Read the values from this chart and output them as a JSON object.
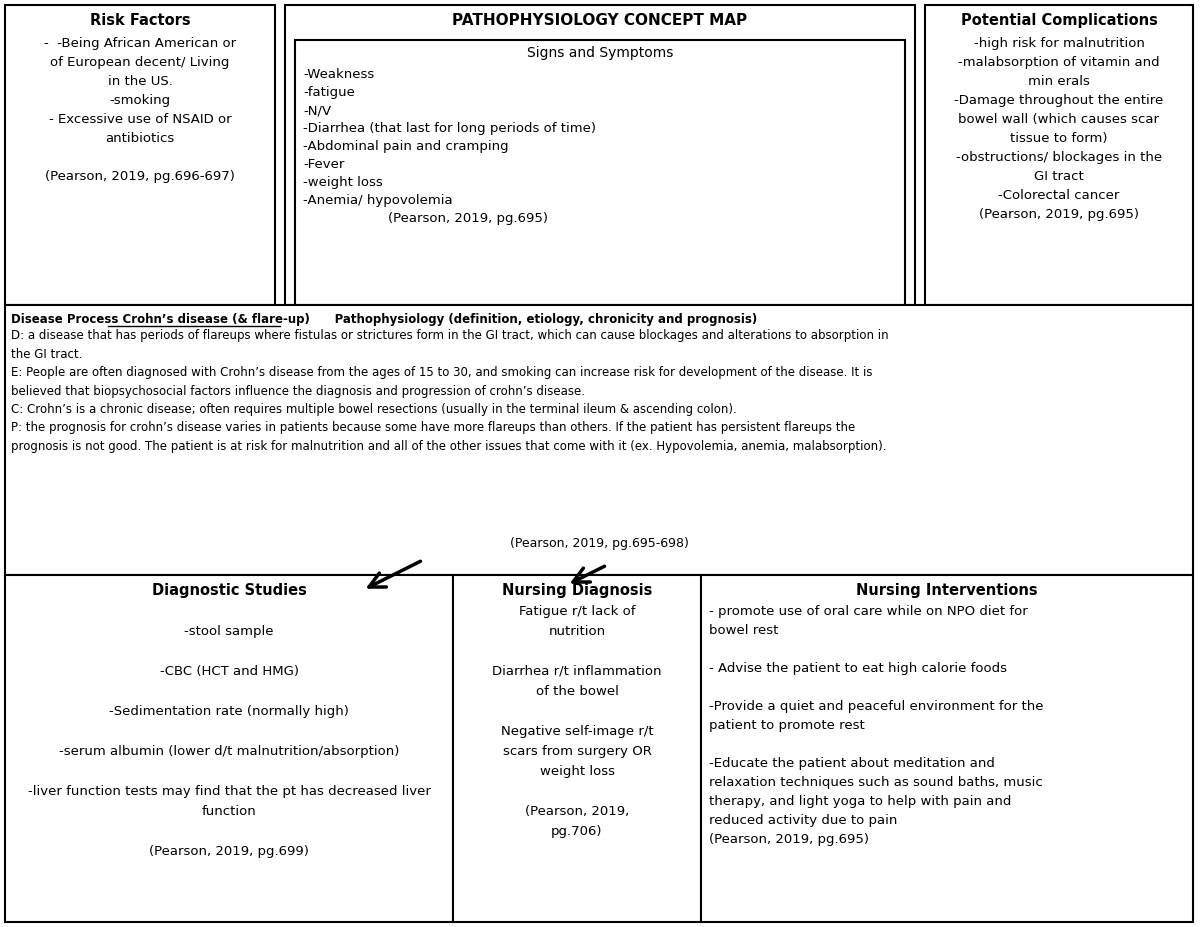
{
  "title": "PATHOPHYSIOLOGY CONCEPT MAP",
  "bg_color": "#ffffff",
  "risk_factors_title": "Risk Factors",
  "risk_factors_body": "-  -Being African American or\nof European decent/ Living\nin the US.\n-smoking\n- Excessive use of NSAID or\nantibiotics\n\n(Pearson, 2019, pg.696-697)",
  "signs_symptoms_title": "Signs and Symptoms",
  "signs_symptoms_body": "-Weakness\n-fatigue\n-N/V\n-Diarrhea (that last for long periods of time)\n-Abdominal pain and cramping\n-Fever\n-weight loss\n-Anemia/ hypovolemia\n                    (Pearson, 2019, pg.695)",
  "complications_title": "Potential Complications",
  "complications_body": "-high risk for malnutrition\n-malabsorption of vitamin and\nmin erals\n-Damage throughout the entire\nbowel wall (which causes scar\ntissue to form)\n-obstructions/ blockages in the\nGI tract\n-Colorectal cancer\n(Pearson, 2019, pg.695)",
  "disease_line1a": "Disease Process ",
  "disease_line1b": "Crohn’s disease (& flare-up)",
  "disease_line1c": "      Pathophysiology (definition, etiology, chronicity and prognosis)",
  "disease_body": "D: a disease that has periods of flareups where fistulas or strictures form in the GI tract, which can cause blockages and alterations to absorption in\nthe GI tract.\nE: People are often diagnosed with Crohn’s disease from the ages of 15 to 30, and smoking can increase risk for development of the disease. It is\nbelieved that biopsychosocial factors influence the diagnosis and progression of crohn’s disease.\nC: Crohn’s is a chronic disease; often requires multiple bowel resections (usually in the terminal ileum & ascending colon).\nP: the prognosis for crohn’s disease varies in patients because some have more flareups than others. If the patient has persistent flareups the\nprognosis is not good. The patient is at risk for malnutrition and all of the other issues that come with it (ex. Hypovolemia, anemia, malabsorption).",
  "disease_citation": "(Pearson, 2019, pg.695-698)",
  "diagnostic_title": "Diagnostic Studies",
  "diagnostic_body": "\n-stool sample\n\n-CBC (HCT and HMG)\n\n-Sedimentation rate (normally high)\n\n-serum albumin (lower d/t malnutrition/absorption)\n\n-liver function tests may find that the pt has decreased liver\nfunction\n\n(Pearson, 2019, pg.699)",
  "nursing_dx_title": "Nursing Diagnosis",
  "nursing_dx_body": "Fatigue r/t lack of\nnutrition\n\nDiarrhea r/t inflammation\nof the bowel\n\nNegative self-image r/t\nscars from surgery OR\nweight loss\n\n(Pearson, 2019,\npg.706)",
  "nursing_int_title": "Nursing Interventions",
  "nursing_int_body": "- promote use of oral care while on NPO diet for\nbowel rest\n\n- Advise the patient to eat high calorie foods\n\n-Provide a quiet and peaceful environment for the\npatient to promote rest\n\n-Educate the patient about meditation and\nrelaxation techniques such as sound baths, music\ntherapy, and light yoga to help with pain and\nreduced activity due to pain\n(Pearson, 2019, pg.695)"
}
